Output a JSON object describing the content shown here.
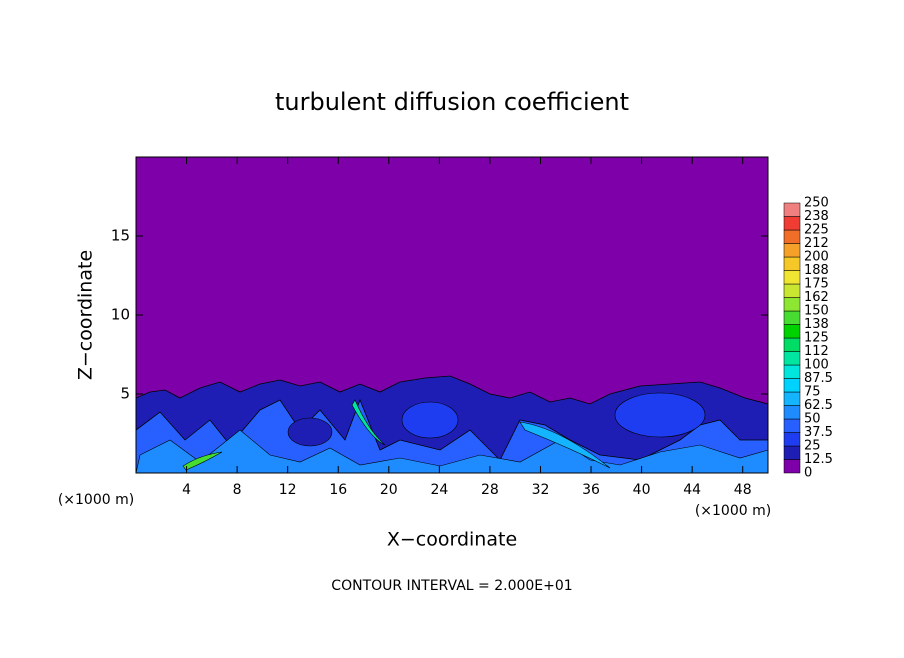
{
  "chart_data": {
    "type": "contour",
    "title": "turbulent diffusion coefficient",
    "x_label": "X−coordinate",
    "y_label": "Z−coordinate",
    "x_unit_label": "(×1000 m)",
    "footnote": "CONTOUR INTERVAL = 2.000E+01",
    "xlim": [
      0,
      50
    ],
    "xticks": [
      4,
      8,
      12,
      16,
      20,
      24,
      28,
      32,
      36,
      40,
      44,
      48
    ],
    "ylim": [
      0,
      20
    ],
    "yticks": [
      5,
      10,
      15
    ],
    "colorbar": {
      "levels": [
        0,
        12.5,
        25,
        37.5,
        50,
        62.5,
        75,
        87.5,
        100,
        112,
        125,
        138,
        150,
        162,
        175,
        188,
        200,
        212,
        225,
        238,
        250
      ],
      "colors": [
        "#7d00a8",
        "#1e1eb4",
        "#1e3cf0",
        "#2860ff",
        "#1e8cff",
        "#14b4ff",
        "#00d2ff",
        "#00e6dc",
        "#00e6a0",
        "#00dc64",
        "#00d200",
        "#46dc32",
        "#8ce632",
        "#c8e632",
        "#f0e632",
        "#f5c828",
        "#f5a028",
        "#f06e28",
        "#f03c32",
        "#f08080"
      ]
    }
  }
}
